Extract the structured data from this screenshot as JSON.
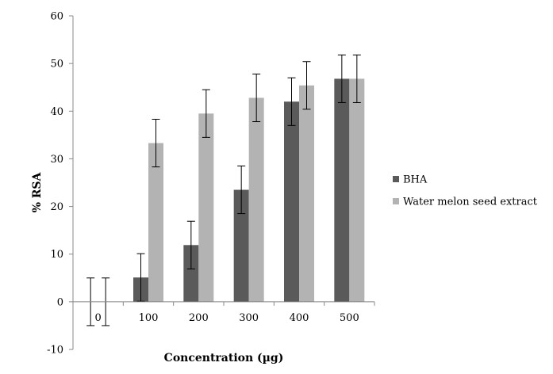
{
  "chart_data": {
    "type": "bar",
    "categories": [
      "0",
      "100",
      "200",
      "300",
      "400",
      "500"
    ],
    "xlabel": "Concentration (µg)",
    "ylabel": "% RSA",
    "ylim": [
      -10,
      60
    ],
    "yticks": [
      "-10",
      "0",
      "10",
      "20",
      "30",
      "40",
      "50",
      "60"
    ],
    "grid": false,
    "legend_position": "right",
    "series": [
      {
        "name": "BHA",
        "color": "#5a5a5a",
        "values": [
          0,
          5.1,
          11.9,
          23.5,
          42.0,
          46.8
        ],
        "errors": [
          5.0,
          5.0,
          5.0,
          5.0,
          5.0,
          5.0
        ]
      },
      {
        "name": "Water melon seed extract",
        "color": "#b3b3b3",
        "values": [
          0,
          33.3,
          39.5,
          42.8,
          45.4,
          46.8
        ],
        "errors": [
          5.0,
          5.0,
          5.0,
          5.0,
          5.0,
          5.0
        ]
      }
    ]
  }
}
